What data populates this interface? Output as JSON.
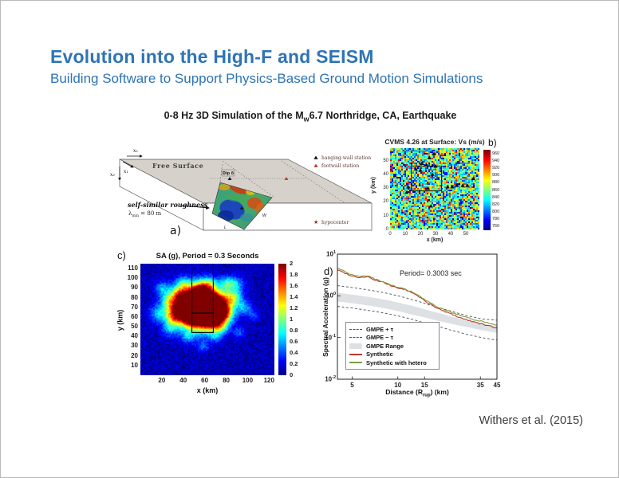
{
  "slide": {
    "title": "Evolution into the High-F and SEISM",
    "subtitle": "Building Software to Support Physics-Based Ground Motion Simulations",
    "figure_heading_pre": "0-8 Hz 3D Simulation of the M",
    "figure_heading_sub": "w",
    "figure_heading_post": "6.7 Northridge, CA, Earthquake",
    "citation": "Withers et al. (2015)",
    "accent_color": "#2e74b5"
  },
  "panel_a": {
    "label": "a)",
    "free_surface": "Free Surface",
    "axis_x1": "x₁",
    "axis_x2": "x₂",
    "axis_x3": "x₃",
    "dip": "Dip δ",
    "rough_line1": "self-similar roughness",
    "rough_lambda_pre": "λ",
    "rough_lambda_sub": "min",
    "rough_lambda_post": " = 80 m",
    "fault_w": "W",
    "fault_l": "L",
    "legend": [
      {
        "marker": "black-triangle",
        "label": "hanging-wall station"
      },
      {
        "marker": "red-triangle",
        "label": "footwall station"
      },
      {
        "marker": "red-star",
        "label": "hypocenter"
      }
    ]
  },
  "chart_data": [
    {
      "id": "panel_b",
      "type": "heatmap",
      "label": "b)",
      "title": "CVMS 4.26 at Surface: Vs (m/s)",
      "xlabel": "x (km)",
      "ylabel": "y (km)",
      "x_range": [
        0,
        59
      ],
      "y_range": [
        0,
        59
      ],
      "x_ticks": [
        0,
        10,
        20,
        30,
        40,
        50
      ],
      "y_ticks": [
        0,
        10,
        20,
        30,
        40,
        50
      ],
      "colormap": "jet",
      "colorbar_range": [
        750,
        970
      ],
      "colorbar_ticks": [
        760,
        780,
        800,
        820,
        840,
        860,
        880,
        900,
        920,
        940,
        960
      ],
      "mean_vs": 850,
      "noise_amplitude": 115,
      "fault_trace": {
        "y": 57,
        "x": [
          8,
          28
        ]
      },
      "box_outline": {
        "x": [
          14,
          34
        ],
        "y": [
          28,
          46
        ]
      },
      "stations": [
        [
          29,
          55
        ],
        [
          26,
          52
        ],
        [
          21,
          48
        ],
        [
          24,
          47
        ],
        [
          30,
          46
        ],
        [
          17,
          44
        ],
        [
          20,
          43
        ],
        [
          28,
          40
        ],
        [
          12,
          31
        ],
        [
          25,
          30
        ],
        [
          38,
          31
        ],
        [
          41,
          31
        ],
        [
          44,
          32
        ],
        [
          48,
          32
        ],
        [
          51,
          32
        ],
        [
          55,
          37
        ],
        [
          11,
          27
        ],
        [
          27,
          17
        ]
      ]
    },
    {
      "id": "panel_c",
      "type": "heatmap",
      "label": "c)",
      "title": "SA (g), Period = 0.3 Seconds",
      "xlabel": "x (km)",
      "ylabel": "y (km)",
      "x_range": [
        0,
        125
      ],
      "y_range": [
        0,
        115
      ],
      "x_ticks": [
        20,
        40,
        60,
        80,
        100,
        120
      ],
      "y_ticks": [
        10,
        20,
        30,
        40,
        50,
        60,
        70,
        80,
        90,
        100,
        110
      ],
      "colormap": "jet",
      "colorbar_range": [
        0,
        2
      ],
      "colorbar_ticks": [
        0,
        0.2,
        0.4,
        0.6,
        0.8,
        1,
        1.2,
        1.4,
        1.6,
        1.8,
        2
      ],
      "background_level": 0.1,
      "box_outline": {
        "x": [
          48,
          68
        ],
        "y": [
          44,
          64
        ]
      },
      "hotspots": [
        [
          52,
          68,
          15,
          1.6
        ],
        [
          63,
          67,
          11,
          1.5
        ],
        [
          45,
          72,
          9,
          1.2
        ],
        [
          70,
          74,
          8,
          1.3
        ],
        [
          56,
          79,
          9,
          1.4
        ],
        [
          48,
          60,
          7,
          1.0
        ],
        [
          66,
          57,
          7,
          1.0
        ],
        [
          33,
          67,
          7,
          0.9
        ],
        [
          78,
          64,
          6,
          0.9
        ],
        [
          86,
          80,
          6,
          0.8
        ],
        [
          56,
          89,
          6,
          0.9
        ],
        [
          36,
          84,
          6,
          0.8
        ],
        [
          25,
          78,
          5,
          0.5
        ],
        [
          20,
          90,
          5,
          0.45
        ],
        [
          88,
          94,
          6,
          0.5
        ],
        [
          97,
          70,
          5,
          0.45
        ],
        [
          27,
          48,
          5,
          0.4
        ],
        [
          58,
          30,
          4,
          0.3
        ],
        [
          16,
          64,
          6,
          0.45
        ],
        [
          92,
          44,
          4,
          0.3
        ],
        [
          105,
          62,
          4,
          0.25
        ],
        [
          44,
          40,
          4,
          0.35
        ],
        [
          70,
          40,
          4,
          0.3
        ],
        [
          80,
          95,
          5,
          0.5
        ],
        [
          40,
          95,
          5,
          0.5
        ],
        [
          65,
          95,
          5,
          0.5
        ],
        [
          30,
          58,
          5,
          0.5
        ],
        [
          75,
          50,
          5,
          0.5
        ]
      ]
    },
    {
      "id": "panel_d",
      "type": "line",
      "label": "d)",
      "annotation": "Period= 0.3003 sec",
      "xlabel_pre": "Distance (R",
      "xlabel_sub": "rup",
      "xlabel_post": ") (km)",
      "ylabel": "Spectral Acceleration (g)",
      "x_scale": "log",
      "y_scale": "log",
      "x_range": [
        4,
        45
      ],
      "y_range": [
        0.01,
        10
      ],
      "x_ticks": [
        5,
        10,
        15,
        35,
        45
      ],
      "y_tick_exponents": [
        1,
        0,
        -1,
        -2
      ],
      "x": [
        4,
        4.5,
        5,
        5.6,
        6.3,
        7.1,
        8,
        9,
        10,
        11.2,
        12.6,
        14.1,
        15.8,
        17.8,
        20,
        22.4,
        25.1,
        28.2,
        31.6,
        35.5,
        39.8,
        45
      ],
      "series": [
        {
          "name": "GMPE + τ",
          "style": "dashed",
          "color": "#4a4f63",
          "y": [
            1.75,
            1.66,
            1.58,
            1.49,
            1.4,
            1.3,
            1.2,
            1.1,
            1.0,
            0.9,
            0.8,
            0.71,
            0.62,
            0.55,
            0.48,
            0.43,
            0.38,
            0.34,
            0.31,
            0.28,
            0.27,
            0.26
          ]
        },
        {
          "name": "GMPE − τ",
          "style": "dashed",
          "color": "#4a4f63",
          "y": [
            0.56,
            0.53,
            0.51,
            0.48,
            0.45,
            0.42,
            0.39,
            0.36,
            0.33,
            0.3,
            0.27,
            0.24,
            0.215,
            0.19,
            0.17,
            0.15,
            0.135,
            0.12,
            0.11,
            0.1,
            0.093,
            0.087
          ]
        },
        {
          "name": "GMPE Range",
          "style": "band",
          "color": "#dde1e4",
          "y_top": [
            1.18,
            1.12,
            1.07,
            1.01,
            0.95,
            0.89,
            0.82,
            0.76,
            0.69,
            0.63,
            0.57,
            0.51,
            0.45,
            0.4,
            0.36,
            0.32,
            0.29,
            0.26,
            0.24,
            0.22,
            0.2,
            0.19
          ],
          "y_bottom": [
            0.73,
            0.7,
            0.66,
            0.63,
            0.59,
            0.55,
            0.51,
            0.47,
            0.43,
            0.39,
            0.35,
            0.32,
            0.29,
            0.26,
            0.235,
            0.215,
            0.195,
            0.18,
            0.165,
            0.15,
            0.14,
            0.13
          ]
        },
        {
          "name": "Synthetic",
          "style": "solid",
          "color": "#bf3a2b",
          "y": [
            4.2,
            3.5,
            3.0,
            2.75,
            2.9,
            2.35,
            2.1,
            1.75,
            1.55,
            1.4,
            1.15,
            0.9,
            0.68,
            0.52,
            0.43,
            0.37,
            0.31,
            0.27,
            0.24,
            0.21,
            0.19,
            0.17
          ]
        },
        {
          "name": "Synthetic with hetero",
          "style": "solid",
          "color": "#7f9e3e",
          "y": [
            4.6,
            3.8,
            3.2,
            2.85,
            3.05,
            2.5,
            2.2,
            1.85,
            1.6,
            1.45,
            1.2,
            0.95,
            0.72,
            0.56,
            0.47,
            0.41,
            0.35,
            0.3,
            0.27,
            0.25,
            0.22,
            0.2
          ]
        }
      ],
      "legend": [
        "GMPE + τ",
        "GMPE − τ",
        "GMPE Range",
        "Synthetic",
        "Synthetic with hetero"
      ]
    }
  ]
}
